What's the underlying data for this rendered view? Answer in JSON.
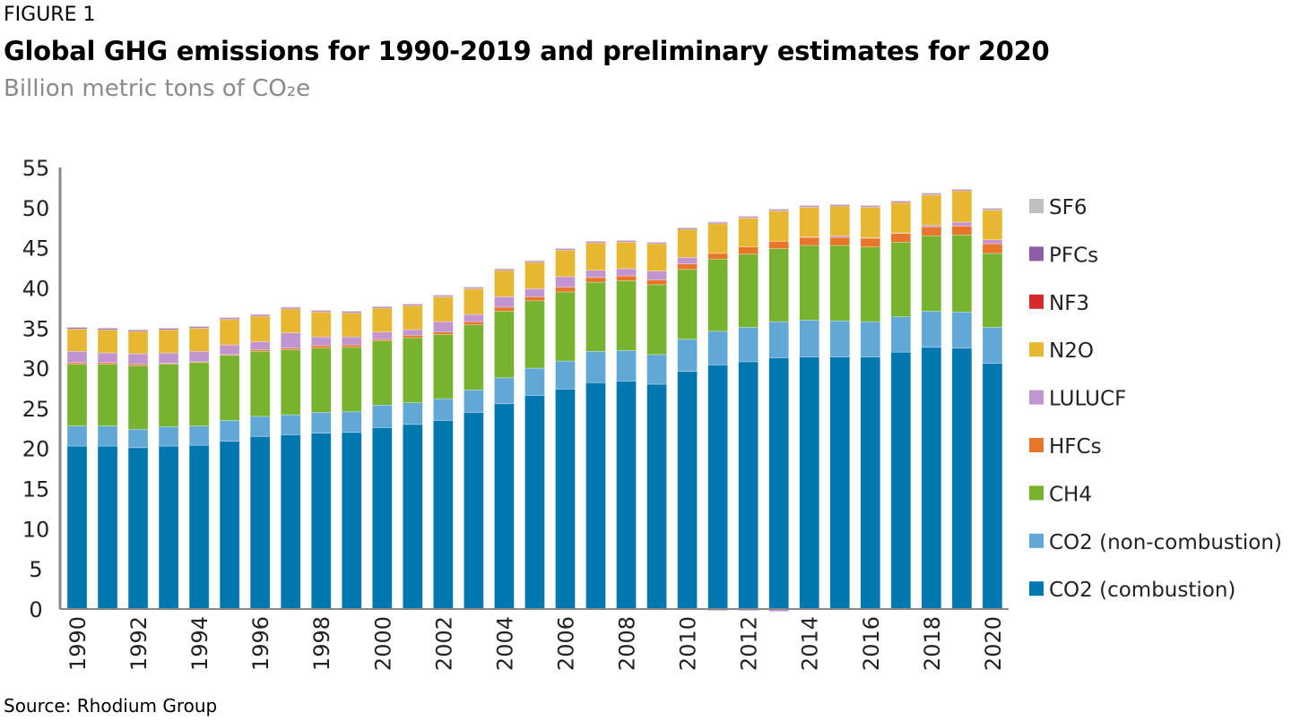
{
  "figure_label": "FIGURE 1",
  "source": "Source: Rhodium Group",
  "chart_data": {
    "type": "bar",
    "stacked": true,
    "title": "Global GHG emissions for 1990-2019 and preliminary estimates for 2020",
    "subtitle": "Billion metric tons of CO₂e",
    "xlabel": "",
    "ylabel": "",
    "ylim": [
      0,
      55
    ],
    "yticks": [
      0,
      5,
      10,
      15,
      20,
      25,
      30,
      35,
      40,
      45,
      50,
      55
    ],
    "grid": false,
    "legend_position": "right",
    "categories": [
      1990,
      1991,
      1992,
      1993,
      1994,
      1995,
      1996,
      1997,
      1998,
      1999,
      2000,
      2001,
      2002,
      2003,
      2004,
      2005,
      2006,
      2007,
      2008,
      2009,
      2010,
      2011,
      2012,
      2013,
      2014,
      2015,
      2016,
      2017,
      2018,
      2019,
      2020
    ],
    "xtick_labels": [
      "1990",
      "1992",
      "1994",
      "1996",
      "1998",
      "2000",
      "2002",
      "2004",
      "2006",
      "2008",
      "2010",
      "2012",
      "2014",
      "2016",
      "2018",
      "2020"
    ],
    "series": [
      {
        "name": "CO2 (combustion)",
        "color": "#0077ae",
        "values": [
          20.3,
          20.3,
          20.1,
          20.3,
          20.4,
          20.9,
          21.5,
          21.7,
          21.9,
          22.0,
          22.6,
          23.0,
          23.5,
          24.5,
          25.6,
          26.6,
          27.4,
          28.2,
          28.4,
          28.0,
          29.6,
          30.4,
          30.8,
          31.3,
          31.4,
          31.4,
          31.4,
          32.0,
          32.6,
          32.5,
          30.6
        ]
      },
      {
        "name": "CO2 (non-combustion)",
        "color": "#62a8d6",
        "values": [
          2.5,
          2.5,
          2.3,
          2.4,
          2.4,
          2.6,
          2.5,
          2.5,
          2.6,
          2.6,
          2.8,
          2.7,
          2.7,
          2.8,
          3.2,
          3.4,
          3.5,
          3.9,
          3.8,
          3.7,
          4.0,
          4.2,
          4.3,
          4.5,
          4.6,
          4.5,
          4.4,
          4.4,
          4.5,
          4.5,
          4.5
        ]
      },
      {
        "name": "CH4",
        "color": "#77b32f",
        "values": [
          7.7,
          7.7,
          7.9,
          7.8,
          7.9,
          8.1,
          8.1,
          8.1,
          8.0,
          8.0,
          8.0,
          8.1,
          8.0,
          8.1,
          8.3,
          8.4,
          8.6,
          8.6,
          8.7,
          8.7,
          8.7,
          9.0,
          9.1,
          9.1,
          9.3,
          9.4,
          9.3,
          9.3,
          9.4,
          9.6,
          9.2
        ]
      },
      {
        "name": "HFCs",
        "color": "#e8762a",
        "values": [
          0.2,
          0.2,
          0.2,
          0.1,
          0.1,
          0.1,
          0.2,
          0.2,
          0.3,
          0.3,
          0.2,
          0.3,
          0.3,
          0.4,
          0.5,
          0.5,
          0.6,
          0.6,
          0.6,
          0.6,
          0.7,
          0.7,
          0.9,
          0.9,
          1.0,
          1.0,
          1.1,
          1.1,
          1.1,
          1.1,
          1.2
        ]
      },
      {
        "name": "LULUCF",
        "color": "#c195cf",
        "values": [
          1.4,
          1.2,
          1.3,
          1.3,
          1.3,
          1.2,
          1.0,
          1.9,
          1.1,
          1.0,
          0.9,
          0.7,
          1.3,
          0.9,
          1.3,
          1.0,
          1.3,
          0.9,
          0.9,
          1.1,
          0.8,
          -0.2,
          -0.2,
          -0.3,
          0.05,
          0.2,
          0.05,
          0.05,
          0.2,
          0.5,
          0.5
        ]
      },
      {
        "name": "N2O",
        "color": "#e8b731",
        "values": [
          2.8,
          2.9,
          2.8,
          2.9,
          2.9,
          3.2,
          3.2,
          3.0,
          3.1,
          3.0,
          3.0,
          3.0,
          3.1,
          3.2,
          3.3,
          3.3,
          3.3,
          3.4,
          3.3,
          3.4,
          3.5,
          3.7,
          3.6,
          3.8,
          3.7,
          3.7,
          3.8,
          3.8,
          3.8,
          3.9,
          3.7
        ]
      },
      {
        "name": "NF3",
        "color": "#d62a2a",
        "values": [
          0.01,
          0.01,
          0.01,
          0.01,
          0.01,
          0.01,
          0.01,
          0.01,
          0.01,
          0.01,
          0.01,
          0.02,
          0.02,
          0.02,
          0.02,
          0.02,
          0.03,
          0.03,
          0.03,
          0.03,
          0.03,
          0.03,
          0.03,
          0.03,
          0.03,
          0.03,
          0.03,
          0.03,
          0.03,
          0.03,
          0.03
        ]
      },
      {
        "name": "PFCs",
        "color": "#8e5ca8",
        "values": [
          0.15,
          0.15,
          0.14,
          0.14,
          0.14,
          0.14,
          0.14,
          0.14,
          0.13,
          0.13,
          0.13,
          0.12,
          0.12,
          0.12,
          0.12,
          0.12,
          0.12,
          0.12,
          0.12,
          0.11,
          0.12,
          0.12,
          0.12,
          0.12,
          0.12,
          0.12,
          0.12,
          0.12,
          0.12,
          0.12,
          0.12
        ]
      },
      {
        "name": "SF6",
        "color": "#c0c0c0",
        "values": [
          0.1,
          0.1,
          0.1,
          0.1,
          0.1,
          0.1,
          0.1,
          0.1,
          0.1,
          0.1,
          0.1,
          0.1,
          0.1,
          0.1,
          0.1,
          0.1,
          0.1,
          0.1,
          0.1,
          0.1,
          0.1,
          0.1,
          0.1,
          0.1,
          0.1,
          0.1,
          0.1,
          0.1,
          0.1,
          0.1,
          0.1
        ]
      }
    ],
    "legend_order": [
      "SF6",
      "PFCs",
      "NF3",
      "N2O",
      "LULUCF",
      "HFCs",
      "CH4",
      "CO2 (non-combustion)",
      "CO2 (combustion)"
    ]
  }
}
